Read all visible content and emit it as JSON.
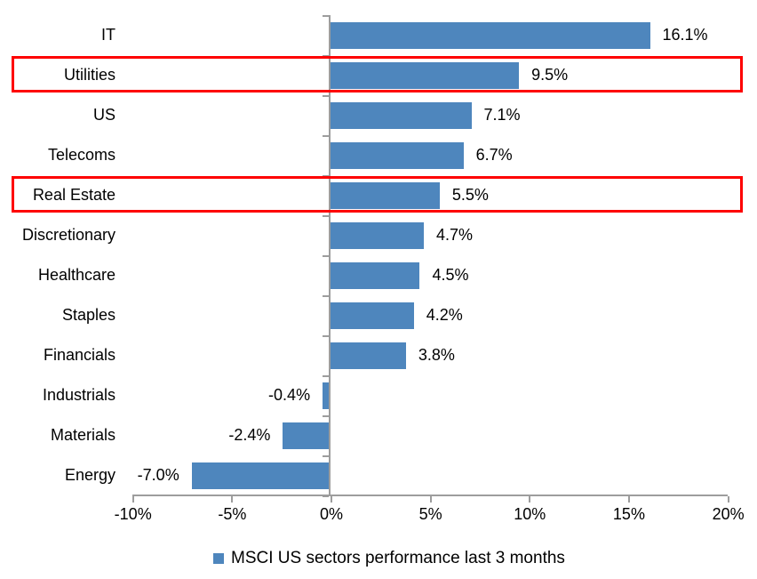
{
  "chart_data": {
    "type": "bar",
    "orientation": "horizontal",
    "categories": [
      "IT",
      "Utilities",
      "US",
      "Telecoms",
      "Real Estate",
      "Discretionary",
      "Healthcare",
      "Staples",
      "Financials",
      "Industrials",
      "Materials",
      "Energy"
    ],
    "values": [
      16.1,
      9.5,
      7.1,
      6.7,
      5.5,
      4.7,
      4.5,
      4.2,
      3.8,
      -0.4,
      -2.4,
      -7.0
    ],
    "data_labels": [
      "16.1%",
      "9.5%",
      "7.1%",
      "6.7%",
      "5.5%",
      "4.7%",
      "4.5%",
      "4.2%",
      "3.8%",
      "-0.4%",
      "-2.4%",
      "-7.0%"
    ],
    "highlighted_categories": [
      "Utilities",
      "Real Estate"
    ],
    "x_ticks": [
      {
        "value": -10,
        "label": "-10%"
      },
      {
        "value": -5,
        "label": "-5%"
      },
      {
        "value": 0,
        "label": "0%"
      },
      {
        "value": 5,
        "label": "5%"
      },
      {
        "value": 10,
        "label": "10%"
      },
      {
        "value": 15,
        "label": "15%"
      },
      {
        "value": 20,
        "label": "20%"
      }
    ],
    "xlim": [
      -10,
      20
    ],
    "grid": false,
    "legend": {
      "position": "bottom",
      "label": "MSCI US sectors performance last 3 months",
      "marker_color": "#4e86bd"
    },
    "colors": {
      "bar": "#4e86bd",
      "highlight_box": "#fe0000",
      "axis": "#9d9d9d",
      "text": "#000000"
    }
  }
}
